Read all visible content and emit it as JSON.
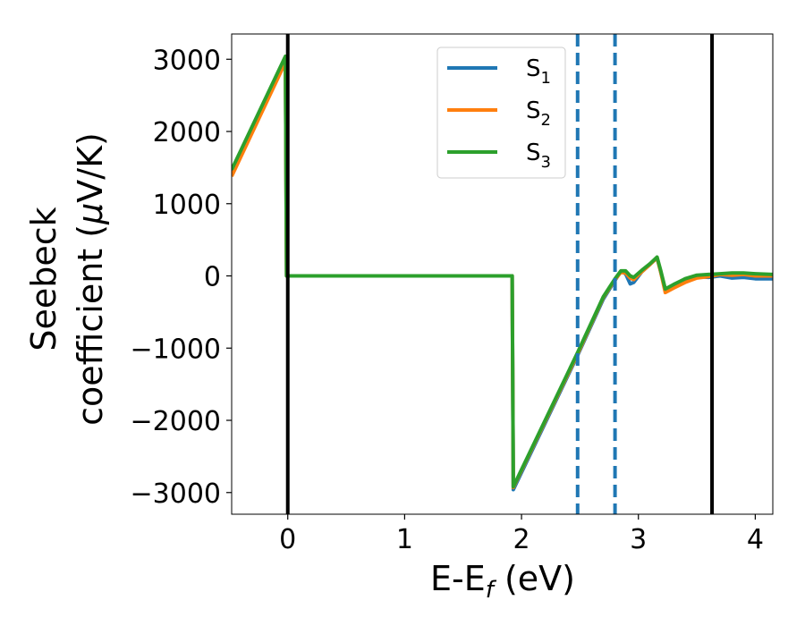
{
  "chart_data": {
    "type": "line",
    "xlabel": "E-E",
    "xlabel_sub": "f",
    "xlabel_unit": " (eV)",
    "ylabel_line1": "Seebeck",
    "ylabel_line2": "coefficient  (",
    "ylabel_mu": "μ",
    "ylabel_unit_end": "V/K)",
    "xlim": [
      -0.48,
      4.15
    ],
    "ylim": [
      -3300,
      3350
    ],
    "xticks": [
      0,
      1,
      2,
      3,
      4
    ],
    "xtick_labels": [
      "0",
      "1",
      "2",
      "3",
      "4"
    ],
    "yticks": [
      3000,
      2000,
      1000,
      0,
      -1000,
      -2000,
      -3000
    ],
    "ytick_labels": [
      "3000",
      "2000",
      "1000",
      "0",
      "−1000",
      "−2000",
      "−3000"
    ],
    "grid": false,
    "legend_position": "top-center",
    "vlines_solid": [
      0.0,
      3.63
    ],
    "vlines_dashed": [
      2.48,
      2.8
    ],
    "vline_solid_color": "#000000",
    "vline_dashed_color": "#1f77b4",
    "series": [
      {
        "name": "S",
        "sub": "1",
        "color": "#1f77b4",
        "x": [
          -0.48,
          -0.02,
          -0.01,
          1.92,
          1.93,
          2.48,
          2.7,
          2.8,
          2.85,
          2.89,
          2.93,
          2.96,
          3.03,
          3.1,
          3.16,
          3.19,
          3.23,
          3.3,
          3.4,
          3.5,
          3.6,
          3.7,
          3.8,
          3.9,
          4.0,
          4.15
        ],
        "y": [
          1450,
          3020,
          0,
          0,
          -2960,
          -1100,
          -320,
          -60,
          60,
          30,
          -110,
          -90,
          60,
          160,
          250,
          60,
          -200,
          -140,
          -60,
          -10,
          -20,
          0,
          -30,
          -20,
          -40,
          -40
        ]
      },
      {
        "name": "S",
        "sub": "2",
        "color": "#ff7f0e",
        "x": [
          -0.48,
          -0.02,
          -0.01,
          1.92,
          1.93,
          2.48,
          2.7,
          2.8,
          2.85,
          2.89,
          2.93,
          2.96,
          3.03,
          3.1,
          3.16,
          3.19,
          3.23,
          3.3,
          3.4,
          3.5,
          3.6,
          3.7,
          3.8,
          3.9,
          4.0,
          4.15
        ],
        "y": [
          1380,
          2960,
          0,
          0,
          -2930,
          -1080,
          -300,
          -50,
          50,
          40,
          -30,
          -50,
          60,
          160,
          250,
          60,
          -230,
          -170,
          -90,
          -30,
          -10,
          20,
          10,
          20,
          0,
          0
        ]
      },
      {
        "name": "S",
        "sub": "3",
        "color": "#2ca02c",
        "x": [
          -0.48,
          -0.02,
          -0.01,
          1.92,
          1.93,
          2.48,
          2.7,
          2.8,
          2.85,
          2.89,
          2.93,
          2.96,
          3.03,
          3.1,
          3.16,
          3.19,
          3.23,
          3.3,
          3.4,
          3.5,
          3.6,
          3.7,
          3.8,
          3.9,
          4.0,
          4.15
        ],
        "y": [
          1470,
          3040,
          0,
          0,
          -2920,
          -1060,
          -290,
          -40,
          70,
          70,
          0,
          -20,
          80,
          170,
          260,
          80,
          -180,
          -120,
          -40,
          10,
          20,
          30,
          40,
          40,
          30,
          20
        ]
      }
    ]
  }
}
